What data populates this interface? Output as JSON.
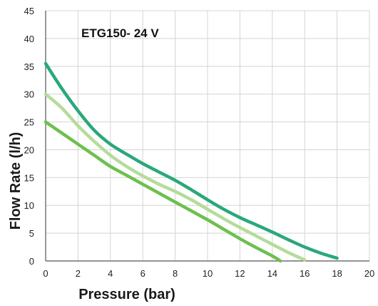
{
  "chart_data": {
    "type": "line",
    "title": "ETG150- 24 V",
    "xlabel": "Pressure (bar)",
    "ylabel": "Flow Rate (l/h)",
    "xlim": [
      0,
      20
    ],
    "ylim": [
      0,
      45
    ],
    "xticks": [
      0,
      2,
      4,
      6,
      8,
      10,
      12,
      14,
      16,
      18,
      20
    ],
    "yticks": [
      0,
      5,
      10,
      15,
      20,
      25,
      30,
      35,
      40,
      45
    ],
    "grid": true,
    "legend": "none",
    "series": [
      {
        "color": "#2aa87a",
        "x": [
          0,
          1,
          2,
          3,
          4,
          5,
          6,
          7,
          8,
          9,
          10,
          11,
          12,
          13,
          14,
          15,
          16,
          17,
          18
        ],
        "y": [
          35.5,
          31,
          27,
          23.5,
          21,
          19.2,
          17.5,
          16,
          14.5,
          12.8,
          11,
          9.3,
          7.8,
          6.5,
          5.2,
          3.8,
          2.5,
          1.4,
          0.5
        ]
      },
      {
        "color": "#b5dc9a",
        "x": [
          0,
          1,
          2,
          3,
          4,
          5,
          6,
          7,
          8,
          9,
          10,
          11,
          12,
          13,
          14,
          15,
          16
        ],
        "y": [
          30,
          27.5,
          24.3,
          21.5,
          19,
          17,
          15.3,
          13.8,
          12.5,
          11,
          9.3,
          7.6,
          6,
          4.5,
          3,
          1.5,
          0.2
        ]
      },
      {
        "color": "#6dc04e",
        "x": [
          0,
          1,
          2,
          3,
          4,
          5,
          6,
          7,
          8,
          9,
          10,
          11,
          12,
          13,
          14,
          14.5
        ],
        "y": [
          25,
          23,
          21,
          19,
          17,
          15.4,
          13.8,
          12.2,
          10.6,
          9,
          7.4,
          5.7,
          4,
          2.4,
          0.9,
          0
        ]
      }
    ]
  }
}
